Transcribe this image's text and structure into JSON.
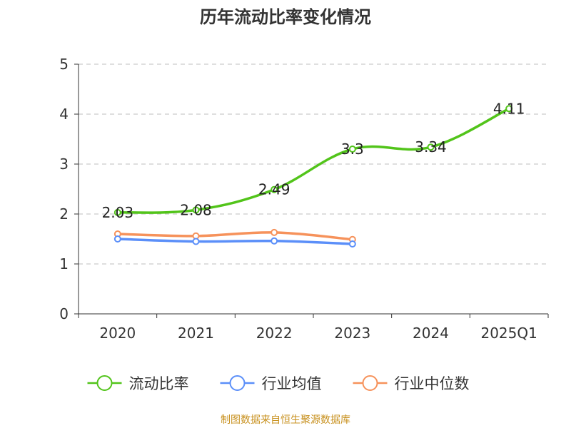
{
  "chart_data": {
    "type": "line",
    "title": "历年流动比率变化情况",
    "source": "制图数据来自恒生聚源数据库",
    "categories": [
      "2020",
      "2021",
      "2022",
      "2023",
      "2024",
      "2025Q1"
    ],
    "ylim": [
      0,
      5
    ],
    "yticks": [
      0,
      1,
      2,
      3,
      4,
      5
    ],
    "grid": true,
    "legend_position": "bottom",
    "series": [
      {
        "name": "流动比率",
        "color": "#52c41a",
        "values": [
          2.03,
          2.08,
          2.49,
          3.3,
          3.34,
          4.11
        ],
        "labels": [
          "2.03",
          "2.08",
          "2.49",
          "3.3",
          "3.34",
          "4.11"
        ]
      },
      {
        "name": "行业均值",
        "color": "#5b8ff9",
        "values": [
          1.5,
          1.45,
          1.46,
          1.4,
          null,
          null
        ]
      },
      {
        "name": "行业中位数",
        "color": "#f6925b",
        "values": [
          1.6,
          1.56,
          1.63,
          1.49,
          null,
          null
        ]
      }
    ]
  }
}
